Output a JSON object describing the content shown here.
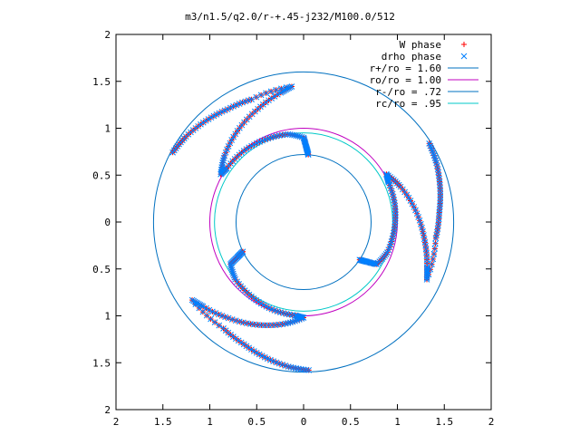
{
  "chart_data": {
    "type": "scatter",
    "title": "m3/n1.5/q2.0/r-+.45-j232/M100.0/512",
    "xlabel": "",
    "ylabel": "",
    "xlim": [
      -2,
      2
    ],
    "ylim": [
      -2,
      2
    ],
    "x_tick_values": [
      -2,
      -1.5,
      -1,
      -0.5,
      0,
      0.5,
      1,
      1.5,
      2
    ],
    "x_tick_labels": [
      "2",
      "1.5",
      "1",
      "0.5",
      "0",
      "0.5",
      "1",
      "1.5",
      "2"
    ],
    "y_tick_values": [
      2,
      1.5,
      1,
      0.5,
      0,
      -0.5,
      -1,
      -1.5,
      -2
    ],
    "y_tick_labels": [
      "2",
      "1.5",
      "1",
      "0.5",
      "0",
      "0.5",
      "1",
      "1.5",
      "2"
    ],
    "grid": false,
    "legend_position": "top-right",
    "colors": {
      "w_phase": "#ff0000",
      "drho_phase": "#0080ff",
      "r_plus": "#0070c0",
      "r_o": "#c000c0",
      "r_minus": "#0070c0",
      "r_c": "#00c8c8",
      "frame": "#000000"
    },
    "circles": [
      {
        "name": "r+/ro = 1.60",
        "radius": 1.6
      },
      {
        "name": "ro/ro = 1.00",
        "radius": 1.0
      },
      {
        "name": "r-/ro = .72",
        "radius": 0.72
      },
      {
        "name": "rc/ro = .95",
        "radius": 0.95
      }
    ],
    "arm_points": [
      {
        "r": 0.72,
        "theta": 86
      },
      {
        "r": 0.8,
        "theta": 88
      },
      {
        "r": 0.9,
        "theta": 90
      },
      {
        "r": 0.95,
        "theta": 100
      },
      {
        "r": 0.97,
        "theta": 115
      },
      {
        "r": 0.99,
        "theta": 130
      },
      {
        "r": 1.0,
        "theta": 145
      },
      {
        "r": 1.02,
        "theta": 150
      },
      {
        "r": 1.1,
        "theta": 140
      },
      {
        "r": 1.2,
        "theta": 126
      },
      {
        "r": 1.3,
        "theta": 112
      },
      {
        "r": 1.4,
        "theta": 100
      },
      {
        "r": 1.45,
        "theta": 95
      },
      {
        "r": 1.42,
        "theta": 113
      },
      {
        "r": 1.45,
        "theta": 124
      },
      {
        "r": 1.5,
        "theta": 134
      },
      {
        "r": 1.55,
        "theta": 144
      },
      {
        "r": 1.58,
        "theta": 152
      }
    ],
    "series": [
      {
        "name": "W phase",
        "marker": "plus",
        "arms_rotation_deg": [
          0,
          120,
          240
        ]
      },
      {
        "name": "drho phase",
        "marker": "cross",
        "arms_rotation_deg": [
          0,
          120,
          240
        ]
      }
    ]
  },
  "legend_entries": [
    {
      "label": "W phase",
      "symbol": "plus",
      "color": "#ff0000"
    },
    {
      "label": "drho phase",
      "symbol": "cross",
      "color": "#0080ff"
    },
    {
      "label": "r+/ro = 1.60",
      "symbol": "line",
      "color": "#0070c0"
    },
    {
      "label": "ro/ro = 1.00",
      "symbol": "line",
      "color": "#c000c0"
    },
    {
      "label": "r-/ro = .72",
      "symbol": "line",
      "color": "#0070c0"
    },
    {
      "label": "rc/ro = .95",
      "symbol": "line",
      "color": "#00c8c8"
    }
  ]
}
